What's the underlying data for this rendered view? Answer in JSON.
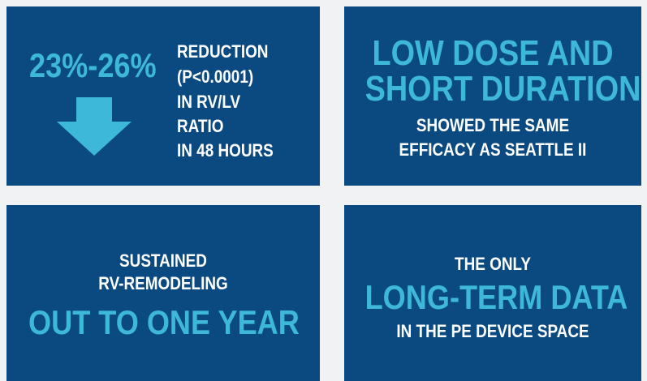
{
  "tiles": [
    {
      "highlight": "23%-26%",
      "lines": [
        "REDUCTION",
        "(P<0.0001)",
        "IN RV/LV",
        "RATIO",
        "IN 48 HOURS"
      ]
    },
    {
      "highlight": [
        "LOW DOSE AND",
        "SHORT DURATION"
      ],
      "lines": [
        "SHOWED THE SAME",
        "EFFICACY AS SEATTLE II"
      ]
    },
    {
      "lines": [
        "SUSTAINED",
        "RV-REMODELING"
      ],
      "highlight": "OUT TO ONE YEAR"
    },
    {
      "lines": [
        "THE ONLY",
        "IN THE PE DEVICE SPACE"
      ],
      "highlight": "LONG-TERM DATA"
    }
  ]
}
